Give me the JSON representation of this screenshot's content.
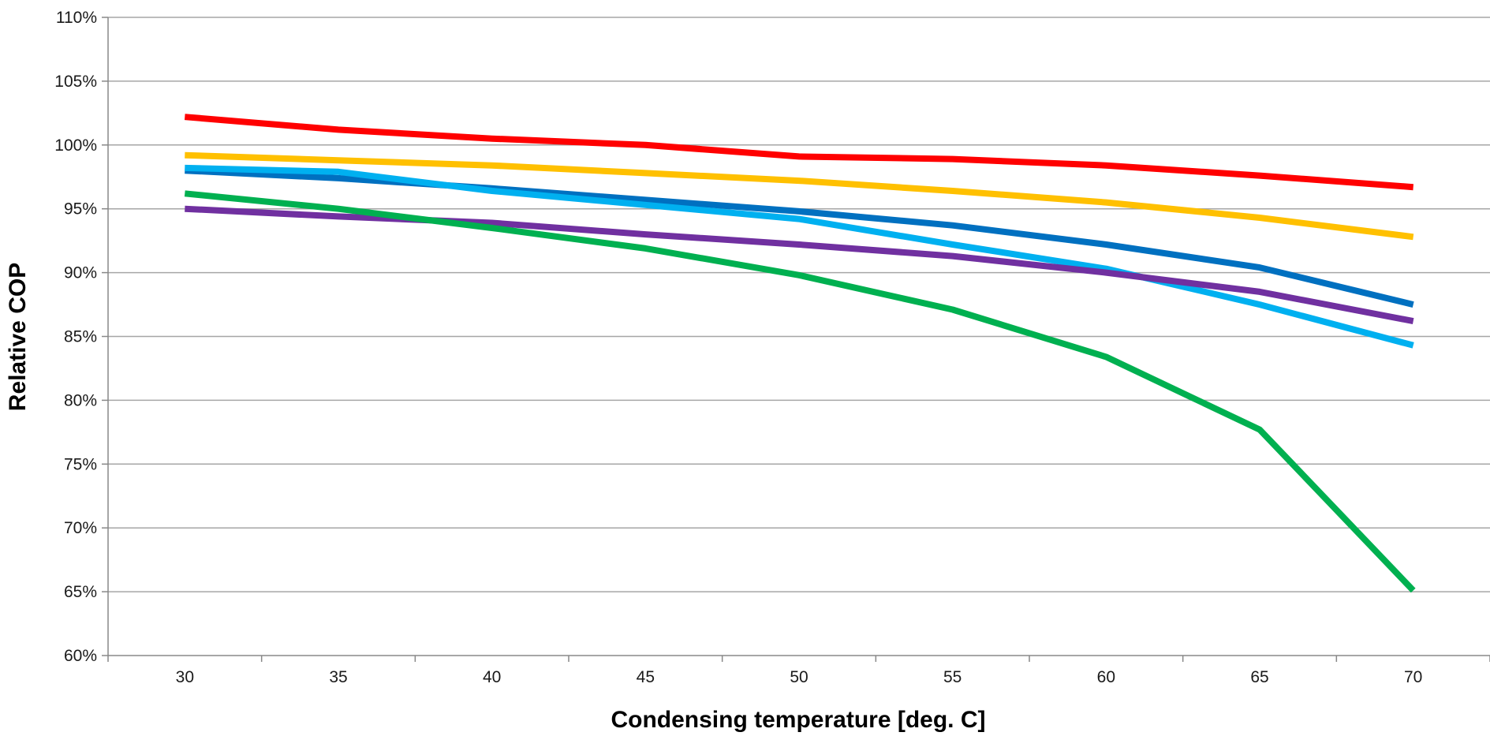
{
  "chart_data": {
    "type": "line",
    "title": "",
    "xlabel": "Condensing temperature [deg. C]",
    "ylabel": "Relative COP",
    "x": [
      30,
      35,
      40,
      45,
      50,
      55,
      60,
      65,
      70
    ],
    "x_tick_labels": [
      "30",
      "35",
      "40",
      "45",
      "50",
      "55",
      "60",
      "65",
      "70"
    ],
    "y_tick_values": [
      0.6,
      0.65,
      0.7,
      0.75,
      0.8,
      0.85,
      0.9,
      0.95,
      1.0,
      1.05,
      1.1
    ],
    "y_tick_labels": [
      "60%",
      "65%",
      "70%",
      "75%",
      "80%",
      "85%",
      "90%",
      "95%",
      "100%",
      "105%",
      "110%"
    ],
    "ylim": [
      0.6,
      1.1
    ],
    "xlim": [
      27.5,
      72.5
    ],
    "grid": "horizontal",
    "legend": "none",
    "series": [
      {
        "color": "#ff0000",
        "values": [
          1.022,
          1.012,
          1.005,
          1.0,
          0.991,
          0.989,
          0.984,
          0.976,
          0.967
        ]
      },
      {
        "color": "#ffc000",
        "values": [
          0.992,
          0.988,
          0.984,
          0.978,
          0.972,
          0.964,
          0.955,
          0.943,
          0.928
        ]
      },
      {
        "color": "#0070c0",
        "values": [
          0.98,
          0.974,
          0.966,
          0.957,
          0.948,
          0.937,
          0.922,
          0.904,
          0.875
        ]
      },
      {
        "color": "#00b0f0",
        "values": [
          0.982,
          0.979,
          0.964,
          0.953,
          0.942,
          0.922,
          0.903,
          0.875,
          0.843
        ]
      },
      {
        "color": "#7030a0",
        "values": [
          0.95,
          0.944,
          0.939,
          0.93,
          0.922,
          0.913,
          0.9,
          0.885,
          0.862
        ]
      },
      {
        "color": "#00b050",
        "values": [
          0.962,
          0.95,
          0.935,
          0.919,
          0.898,
          0.871,
          0.834,
          0.777,
          0.651
        ]
      }
    ]
  }
}
